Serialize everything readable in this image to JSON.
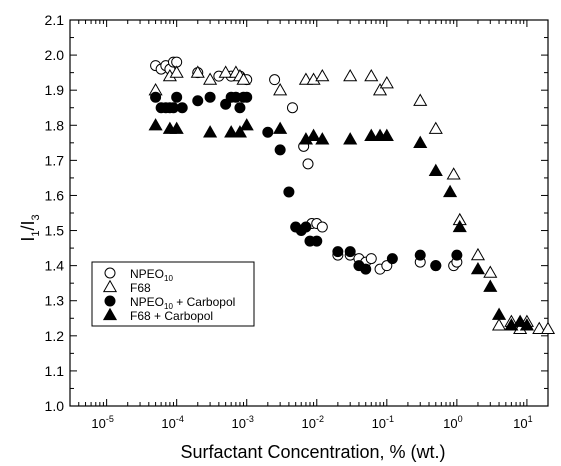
{
  "chart_data": {
    "type": "scatter",
    "xlabel": "Surfactant Concentration, % (wt.)",
    "ylabel": {
      "main": "I",
      "sub1": "1",
      "slash": "/I",
      "sub2": "3"
    },
    "x_scale": "log",
    "xlim": [
      3e-06,
      20
    ],
    "ylim": [
      1.0,
      2.1
    ],
    "x_ticks": [
      {
        "base": "10",
        "exp": "-5",
        "value": 1e-05
      },
      {
        "base": "10",
        "exp": "-4",
        "value": 0.0001
      },
      {
        "base": "10",
        "exp": "-3",
        "value": 0.001
      },
      {
        "base": "10",
        "exp": "-2",
        "value": 0.01
      },
      {
        "base": "10",
        "exp": "-1",
        "value": 0.1
      },
      {
        "base": "10",
        "exp": "0",
        "value": 1
      },
      {
        "base": "10",
        "exp": "1",
        "value": 10
      }
    ],
    "y_ticks": [
      "1.0",
      "1.1",
      "1.2",
      "1.3",
      "1.4",
      "1.5",
      "1.6",
      "1.7",
      "1.8",
      "1.9",
      "2.0",
      "2.1"
    ],
    "grid": false,
    "legend_position": "lower-left",
    "series": [
      {
        "name": "NPEO",
        "name_sub": "10",
        "name_suffix": "",
        "marker": "circle-open",
        "points": [
          [
            5e-05,
            1.97
          ],
          [
            6e-05,
            1.96
          ],
          [
            7e-05,
            1.97
          ],
          [
            8e-05,
            1.96
          ],
          [
            9e-05,
            1.98
          ],
          [
            0.0001,
            1.98
          ],
          [
            0.0002,
            1.95
          ],
          [
            0.0004,
            1.94
          ],
          [
            0.0006,
            1.94
          ],
          [
            0.0008,
            1.94
          ],
          [
            0.001,
            1.93
          ],
          [
            0.0025,
            1.93
          ],
          [
            0.0045,
            1.85
          ],
          [
            0.0065,
            1.74
          ],
          [
            0.0075,
            1.69
          ],
          [
            0.0085,
            1.52
          ],
          [
            0.01,
            1.52
          ],
          [
            0.012,
            1.51
          ],
          [
            0.02,
            1.43
          ],
          [
            0.03,
            1.43
          ],
          [
            0.04,
            1.42
          ],
          [
            0.05,
            1.41
          ],
          [
            0.06,
            1.42
          ],
          [
            0.08,
            1.39
          ],
          [
            0.1,
            1.4
          ],
          [
            0.3,
            1.41
          ],
          [
            0.5,
            1.4
          ],
          [
            0.9,
            1.4
          ],
          [
            1.0,
            1.41
          ]
        ]
      },
      {
        "name": "F68",
        "name_sub": "",
        "name_suffix": "",
        "marker": "triangle-open",
        "points": [
          [
            5e-05,
            1.9
          ],
          [
            8e-05,
            1.94
          ],
          [
            0.0001,
            1.95
          ],
          [
            0.0002,
            1.95
          ],
          [
            0.0003,
            1.93
          ],
          [
            0.0005,
            1.95
          ],
          [
            0.0007,
            1.95
          ],
          [
            0.0008,
            1.94
          ],
          [
            0.0009,
            1.93
          ],
          [
            0.003,
            1.9
          ],
          [
            0.007,
            1.93
          ],
          [
            0.009,
            1.93
          ],
          [
            0.012,
            1.94
          ],
          [
            0.03,
            1.94
          ],
          [
            0.06,
            1.94
          ],
          [
            0.08,
            1.9
          ],
          [
            0.1,
            1.92
          ],
          [
            0.3,
            1.87
          ],
          [
            0.5,
            1.79
          ],
          [
            0.9,
            1.66
          ],
          [
            1.1,
            1.53
          ],
          [
            2,
            1.43
          ],
          [
            3,
            1.38
          ],
          [
            4,
            1.23
          ],
          [
            6,
            1.24
          ],
          [
            8,
            1.22
          ],
          [
            10,
            1.24
          ],
          [
            15,
            1.22
          ],
          [
            20,
            1.22
          ]
        ]
      },
      {
        "name": "NPEO",
        "name_sub": "10",
        "name_suffix": " + Carbopol",
        "marker": "circle-filled",
        "points": [
          [
            5e-05,
            1.88
          ],
          [
            6e-05,
            1.85
          ],
          [
            7e-05,
            1.85
          ],
          [
            8e-05,
            1.85
          ],
          [
            9e-05,
            1.85
          ],
          [
            0.0001,
            1.88
          ],
          [
            0.00012,
            1.85
          ],
          [
            0.0002,
            1.87
          ],
          [
            0.0003,
            1.88
          ],
          [
            0.0005,
            1.86
          ],
          [
            0.0006,
            1.88
          ],
          [
            0.0007,
            1.88
          ],
          [
            0.0008,
            1.85
          ],
          [
            0.0009,
            1.88
          ],
          [
            0.001,
            1.88
          ],
          [
            0.002,
            1.78
          ],
          [
            0.003,
            1.73
          ],
          [
            0.004,
            1.61
          ],
          [
            0.005,
            1.51
          ],
          [
            0.006,
            1.5
          ],
          [
            0.007,
            1.51
          ],
          [
            0.008,
            1.47
          ],
          [
            0.01,
            1.47
          ],
          [
            0.02,
            1.44
          ],
          [
            0.03,
            1.44
          ],
          [
            0.04,
            1.4
          ],
          [
            0.05,
            1.39
          ],
          [
            0.12,
            1.42
          ],
          [
            0.3,
            1.43
          ],
          [
            0.5,
            1.4
          ],
          [
            1.0,
            1.43
          ]
        ]
      },
      {
        "name": "F68",
        "name_sub": "",
        "name_suffix": " + Carbopol",
        "marker": "triangle-filled",
        "points": [
          [
            5e-05,
            1.8
          ],
          [
            8e-05,
            1.79
          ],
          [
            0.0001,
            1.79
          ],
          [
            0.0003,
            1.78
          ],
          [
            0.0006,
            1.78
          ],
          [
            0.0008,
            1.78
          ],
          [
            0.001,
            1.8
          ],
          [
            0.003,
            1.79
          ],
          [
            0.007,
            1.76
          ],
          [
            0.009,
            1.77
          ],
          [
            0.012,
            1.76
          ],
          [
            0.03,
            1.76
          ],
          [
            0.06,
            1.77
          ],
          [
            0.08,
            1.77
          ],
          [
            0.1,
            1.77
          ],
          [
            0.3,
            1.75
          ],
          [
            0.5,
            1.67
          ],
          [
            0.8,
            1.61
          ],
          [
            1.1,
            1.51
          ],
          [
            2,
            1.39
          ],
          [
            3,
            1.34
          ],
          [
            4,
            1.26
          ],
          [
            6,
            1.23
          ],
          [
            8,
            1.24
          ],
          [
            10,
            1.23
          ]
        ]
      }
    ]
  }
}
